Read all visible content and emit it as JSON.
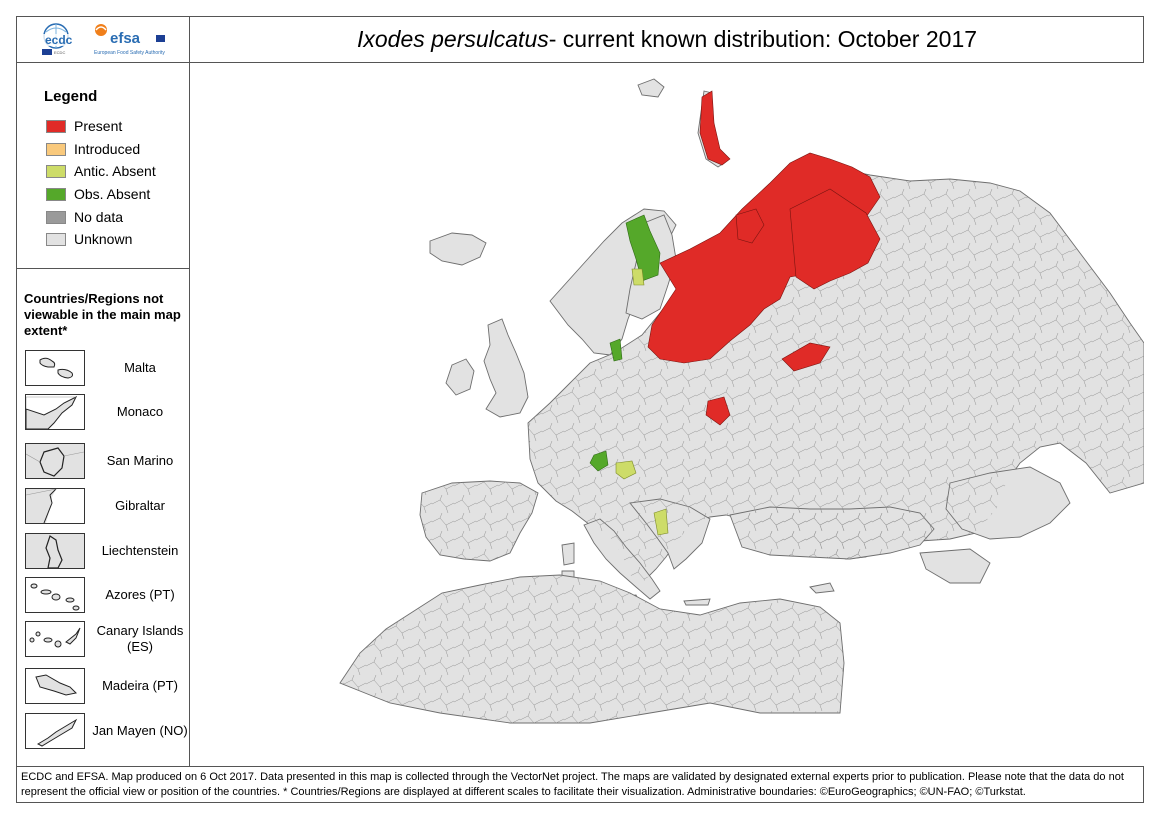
{
  "header": {
    "logos": [
      "ecdc",
      "efsa"
    ],
    "efsa_sub": "European Food Safety Authority",
    "title_species": "Ixodes persulcatus",
    "title_rest": " - current known distribution: October 2017"
  },
  "legend": {
    "title": "Legend",
    "items": [
      {
        "label": "Present",
        "color": "#e02b27"
      },
      {
        "label": "Introduced",
        "color": "#f9c97c"
      },
      {
        "label": "Antic. Absent",
        "color": "#cddc68"
      },
      {
        "label": "Obs. Absent",
        "color": "#55a82a"
      },
      {
        "label": "No data",
        "color": "#9a9a9a"
      },
      {
        "label": "Unknown",
        "color": "#e2e2e2"
      }
    ]
  },
  "insets": {
    "title": "Countries/Regions not viewable in the main map extent*",
    "items": [
      {
        "label": "Malta"
      },
      {
        "label": "Monaco"
      },
      {
        "label": "San Marino"
      },
      {
        "label": "Gibraltar"
      },
      {
        "label": "Liechtenstein"
      },
      {
        "label": "Azores (PT)"
      },
      {
        "label": "Canary Islands (ES)"
      },
      {
        "label": "Madeira (PT)"
      },
      {
        "label": "Jan Mayen (NO)"
      }
    ]
  },
  "footer": {
    "text": "ECDC and EFSA. Map produced on 6 Oct 2017. Data presented in this map is collected through the VectorNet project. The maps are validated by designated external experts prior to publication. Please note that the data do not represent the official view or position of the countries. * Countries/Regions are displayed at different scales to facilitate their visualization. Administrative boundaries: ©EuroGeographics; ©UN-FAO; ©Turkstat."
  },
  "map": {
    "colors": {
      "land": "#e2e2e2",
      "border": "#8a8a8a",
      "present": "#e02b27",
      "antic_absent": "#cddc68",
      "obs_absent": "#55a82a",
      "sea": "#ffffff"
    }
  }
}
